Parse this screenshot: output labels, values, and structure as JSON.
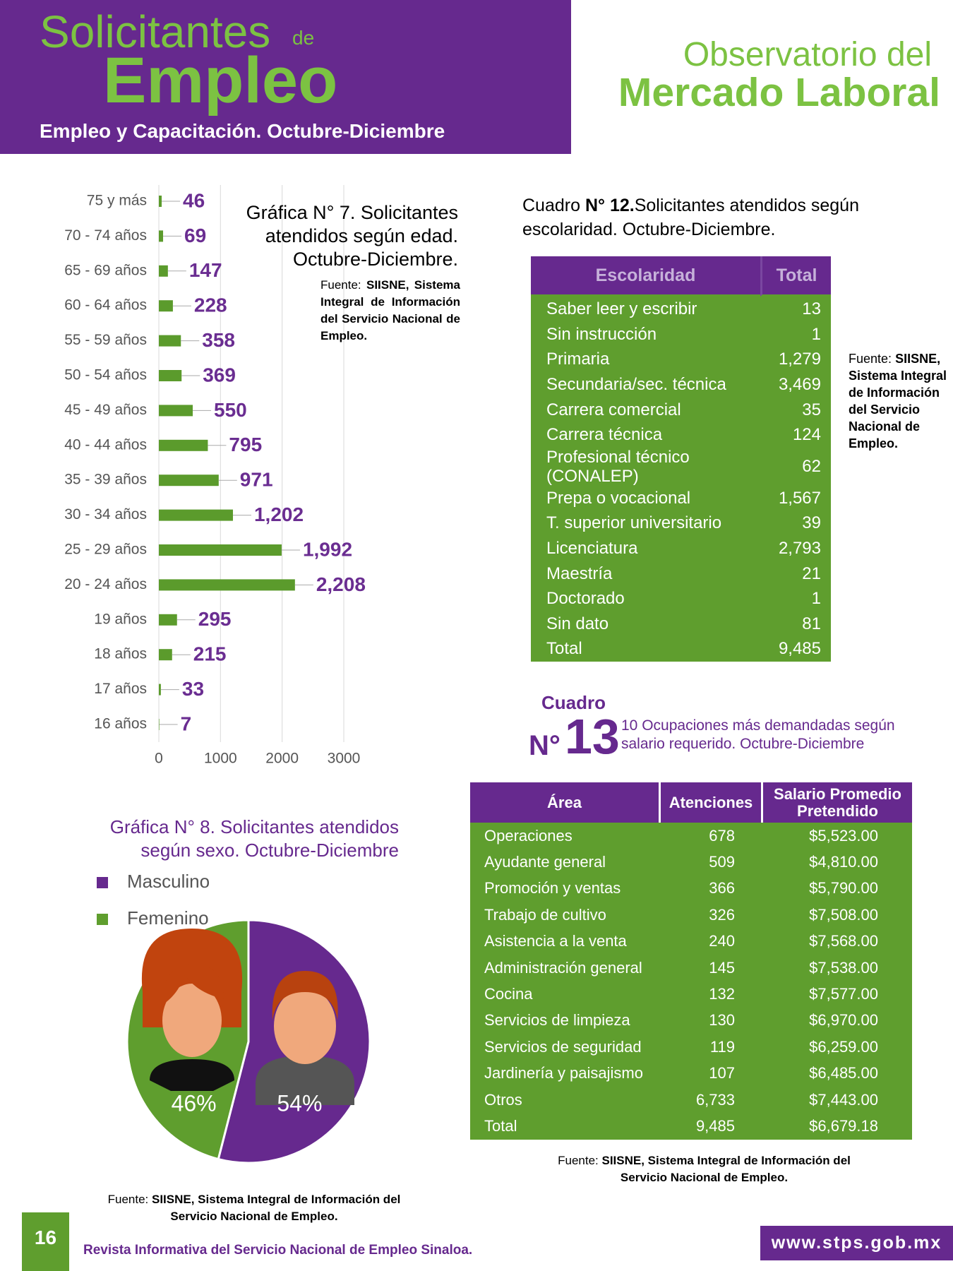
{
  "header": {
    "title_line1": "Solicitantes",
    "title_de": "de",
    "title_main": "Empleo",
    "subtitle": "Empleo y Capacitación. Octubre-Diciembre",
    "brand_line1": "Observatorio del",
    "brand_line2": "Mercado Laboral"
  },
  "chart_data": [
    {
      "type": "bar",
      "orientation": "horizontal",
      "title": [
        "Gráfica N° 7. Solicitantes",
        "atendidos según edad.",
        "Octubre-Diciembre."
      ],
      "source_label": "Fuente:",
      "source": "SIISNE, Sistema Integral de Información del Servicio Nacional de Empleo.",
      "categories": [
        "75 y más",
        "70 - 74 años",
        "65 - 69 años",
        "60 - 64 años",
        "55 - 59 años",
        "50 - 54 años",
        "45 - 49 años",
        "40 - 44 años",
        "35 - 39 años",
        "30 - 34 años",
        "25 - 29 años",
        "20 - 24 años",
        "19 años",
        "18 años",
        "17 años",
        "16 años"
      ],
      "values": [
        46,
        69,
        147,
        228,
        358,
        369,
        550,
        795,
        971,
        1202,
        1992,
        2208,
        295,
        215,
        33,
        7
      ],
      "value_labels": [
        "46",
        "69",
        "147",
        "228",
        "358",
        "369",
        "550",
        "795",
        "971",
        "1,202",
        "1,992",
        "2,208",
        "295",
        "215",
        "33",
        "7"
      ],
      "color": "#5b9b2c",
      "label_color": "#6a2d91",
      "xlim": [
        0,
        3000
      ],
      "xticks": [
        0,
        1000,
        2000,
        3000
      ],
      "grid": true
    },
    {
      "type": "pie",
      "title": [
        "Gráfica N° 8. Solicitantes atendidos",
        "según sexo. Octubre-Diciembre"
      ],
      "categories": [
        "Masculino",
        "Femenino"
      ],
      "values": [
        54,
        46
      ],
      "value_labels": [
        "54%",
        "46%"
      ],
      "colors": [
        "#66298e",
        "#5f9e2e"
      ],
      "source_label": "Fuente:",
      "source": "SIISNE, Sistema Integral de Información del Servicio Nacional de Empleo."
    }
  ],
  "table_12": {
    "title_prefix": "Cuadro",
    "title_number": "N° 12.",
    "title_rest": "Solicitantes atendidos según escolaridad. Octubre-Diciembre.",
    "headers": [
      "Escolaridad",
      "Total"
    ],
    "rows": [
      [
        "Saber leer y escribir",
        "13"
      ],
      [
        "Sin instrucción",
        "1"
      ],
      [
        "Primaria",
        "1,279"
      ],
      [
        "Secundaria/sec. técnica",
        "3,469"
      ],
      [
        "Carrera comercial",
        "35"
      ],
      [
        "Carrera técnica",
        "124"
      ],
      [
        "Profesional técnico (CONALEP)",
        "62"
      ],
      [
        "Prepa o vocacional",
        "1,567"
      ],
      [
        "T. superior universitario",
        "39"
      ],
      [
        "Licenciatura",
        "2,793"
      ],
      [
        "Maestría",
        "21"
      ],
      [
        "Doctorado",
        "1"
      ],
      [
        "Sin dato",
        "81"
      ],
      [
        "Total",
        "9,485"
      ]
    ],
    "source_label": "Fuente:",
    "source": "SIISNE, Sistema Integral de Información del Servicio Nacional de Empleo."
  },
  "table_13": {
    "title_word": "Cuadro",
    "title_no": "N°",
    "title_num": "13",
    "description": "10 Ocupaciones más demandadas según salario requerido. Octubre-Diciembre",
    "headers": [
      "Área",
      "Atenciones",
      "Salario Promedio Pretendido"
    ],
    "rows": [
      [
        "Operaciones",
        "678",
        "$5,523.00"
      ],
      [
        "Ayudante general",
        "509",
        "$4,810.00"
      ],
      [
        "Promoción y ventas",
        "366",
        "$5,790.00"
      ],
      [
        "Trabajo de cultivo",
        "326",
        "$7,508.00"
      ],
      [
        "Asistencia a la venta",
        "240",
        "$7,568.00"
      ],
      [
        "Administración general",
        "145",
        "$7,538.00"
      ],
      [
        "Cocina",
        "132",
        "$7,577.00"
      ],
      [
        "Servicios de limpieza",
        "130",
        "$6,970.00"
      ],
      [
        "Servicios de seguridad",
        "119",
        "$6,259.00"
      ],
      [
        "Jardinería y paisajismo",
        "107",
        "$6,485.00"
      ],
      [
        "Otros",
        "6,733",
        "$7,443.00"
      ],
      [
        "Total",
        "9,485",
        "$6,679.18"
      ]
    ],
    "source_label": "Fuente:",
    "source": "SIISNE, Sistema Integral de Información del Servicio Nacional de Empleo."
  },
  "footer": {
    "page": "16",
    "publication": "Revista Informativa del Servicio Nacional de Empleo Sinaloa.",
    "website": "www.stps.gob.mx"
  }
}
